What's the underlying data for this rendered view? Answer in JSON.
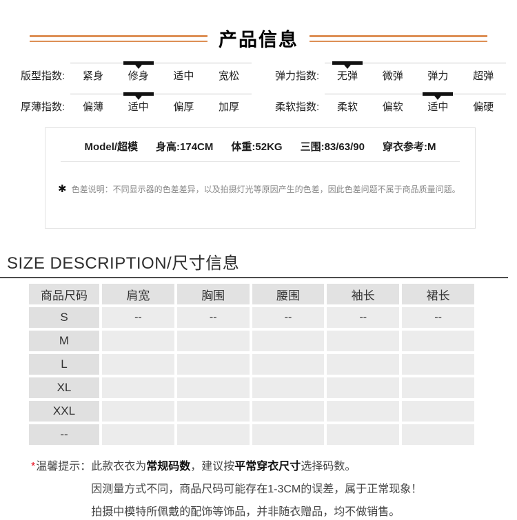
{
  "header": {
    "title": "产品信息"
  },
  "colors": {
    "accent_orange": "#dd8f55",
    "marker_black": "#111111",
    "tip_red": "#e60012",
    "table_header_bg": "#e2e2e2",
    "table_cell_bg": "#ececec"
  },
  "indicators": [
    {
      "label": "版型指数:",
      "options": [
        "紧身",
        "修身",
        "适中",
        "宽松"
      ],
      "selected": 1
    },
    {
      "label": "弹力指数:",
      "options": [
        "无弹",
        "微弹",
        "弹力",
        "超弹"
      ],
      "selected": 0
    },
    {
      "label": "厚薄指数:",
      "options": [
        "偏薄",
        "适中",
        "偏厚",
        "加厚"
      ],
      "selected": 1
    },
    {
      "label": "柔软指数:",
      "options": [
        "柔软",
        "偏软",
        "适中",
        "偏硬"
      ],
      "selected": 2
    }
  ],
  "model_info": {
    "parts": [
      "Model/超模",
      "身高:174CM",
      "体重:52KG",
      "三围:83/63/90",
      "穿衣参考:M"
    ],
    "note_icon": "✱",
    "note_label": "色差说明：",
    "note_text": "不同显示器的色差差异，以及拍摄灯光等原因产生的色差，因此色差问题不属于商品质量问题。"
  },
  "size_section": {
    "heading": "SIZE DESCRIPTION/尺寸信息",
    "table": {
      "headers": [
        "商品尺码",
        "肩宽",
        "胸围",
        "腰围",
        "袖长",
        "裙长"
      ],
      "rows": [
        [
          "S",
          "--",
          "--",
          "--",
          "--",
          "--"
        ],
        [
          "M",
          "",
          "",
          "",
          "",
          ""
        ],
        [
          "L",
          "",
          "",
          "",
          "",
          ""
        ],
        [
          "XL",
          "",
          "",
          "",
          "",
          ""
        ],
        [
          "XXL",
          "",
          "",
          "",
          "",
          ""
        ],
        [
          "--",
          "",
          "",
          "",
          "",
          ""
        ]
      ]
    }
  },
  "tips": {
    "star": "*",
    "label": "温馨提示：",
    "lines": [
      {
        "segments": [
          {
            "text": "此款衣衣为",
            "bold": false
          },
          {
            "text": "常规码数",
            "bold": true
          },
          {
            "text": "，建议按",
            "bold": false
          },
          {
            "text": "平常穿衣尺寸",
            "bold": true
          },
          {
            "text": "选择码数。",
            "bold": false
          }
        ]
      },
      {
        "segments": [
          {
            "text": "因测量方式不同，商品尺码可能存在1-3CM的误差，属于正常现象！",
            "bold": false
          }
        ]
      },
      {
        "segments": [
          {
            "text": "拍摄中模特所佩戴的配饰等饰品，并非随衣赠品，均不做销售。",
            "bold": false
          }
        ]
      }
    ]
  }
}
